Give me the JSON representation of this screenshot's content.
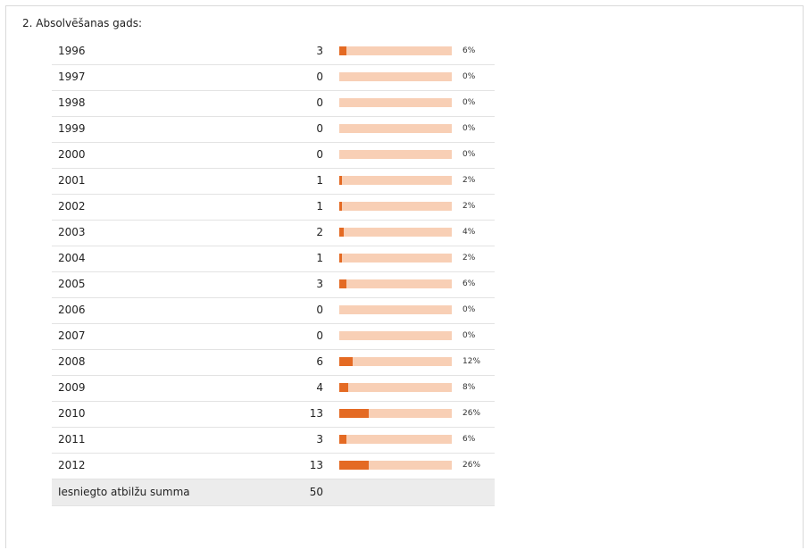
{
  "question": {
    "title": "2. Absolvēšanas gads:"
  },
  "colors": {
    "bar_fill": "#e46a23",
    "bar_track": "#f8cfb5",
    "total_row_bg": "#ececec"
  },
  "chart_data": {
    "type": "bar",
    "categories": [
      "1996",
      "1997",
      "1998",
      "1999",
      "2000",
      "2001",
      "2002",
      "2003",
      "2004",
      "2005",
      "2006",
      "2007",
      "2008",
      "2009",
      "2010",
      "2011",
      "2012"
    ],
    "values": [
      3,
      0,
      0,
      0,
      0,
      1,
      1,
      2,
      1,
      3,
      0,
      0,
      6,
      4,
      13,
      3,
      13
    ],
    "percent_labels": [
      "6%",
      "0%",
      "0%",
      "0%",
      "0%",
      "2%",
      "2%",
      "4%",
      "2%",
      "6%",
      "0%",
      "0%",
      "12%",
      "8%",
      "26%",
      "6%",
      "26%"
    ],
    "percents": [
      6,
      0,
      0,
      0,
      0,
      2,
      2,
      4,
      2,
      6,
      0,
      0,
      12,
      8,
      26,
      6,
      26
    ],
    "ylim": [
      0,
      100
    ]
  },
  "total": {
    "label": "Iesniegto atbilžu summa",
    "value": "50"
  }
}
